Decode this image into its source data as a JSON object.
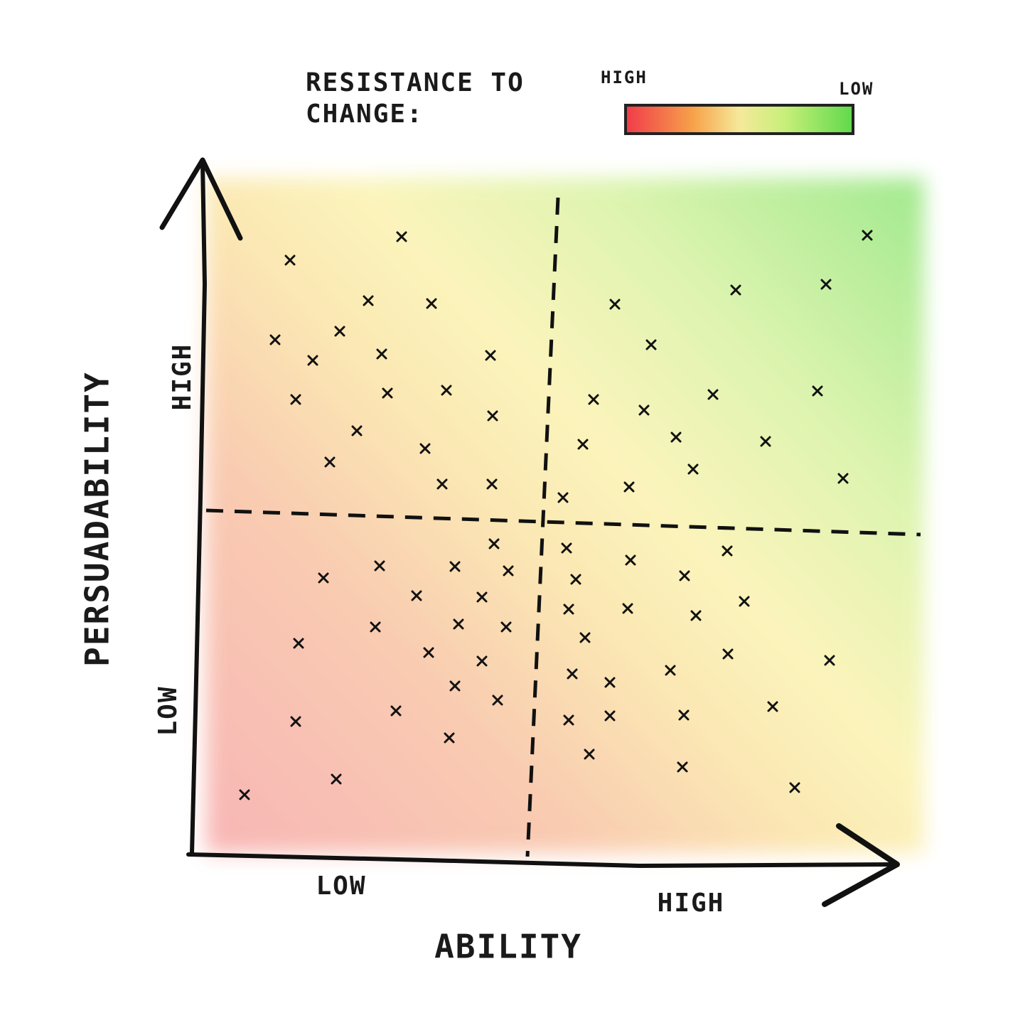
{
  "legend": {
    "title_lines": [
      "RESISTANCE TO",
      "CHANGE:"
    ],
    "high_label": "HIGH",
    "low_label": "LOW"
  },
  "y_axis": {
    "label": "PERSUADABILITY",
    "high_label": "HIGH",
    "low_label": "LOW"
  },
  "x_axis": {
    "label": "ABILITY",
    "low_label": "LOW",
    "high_label": "HIGH"
  }
}
